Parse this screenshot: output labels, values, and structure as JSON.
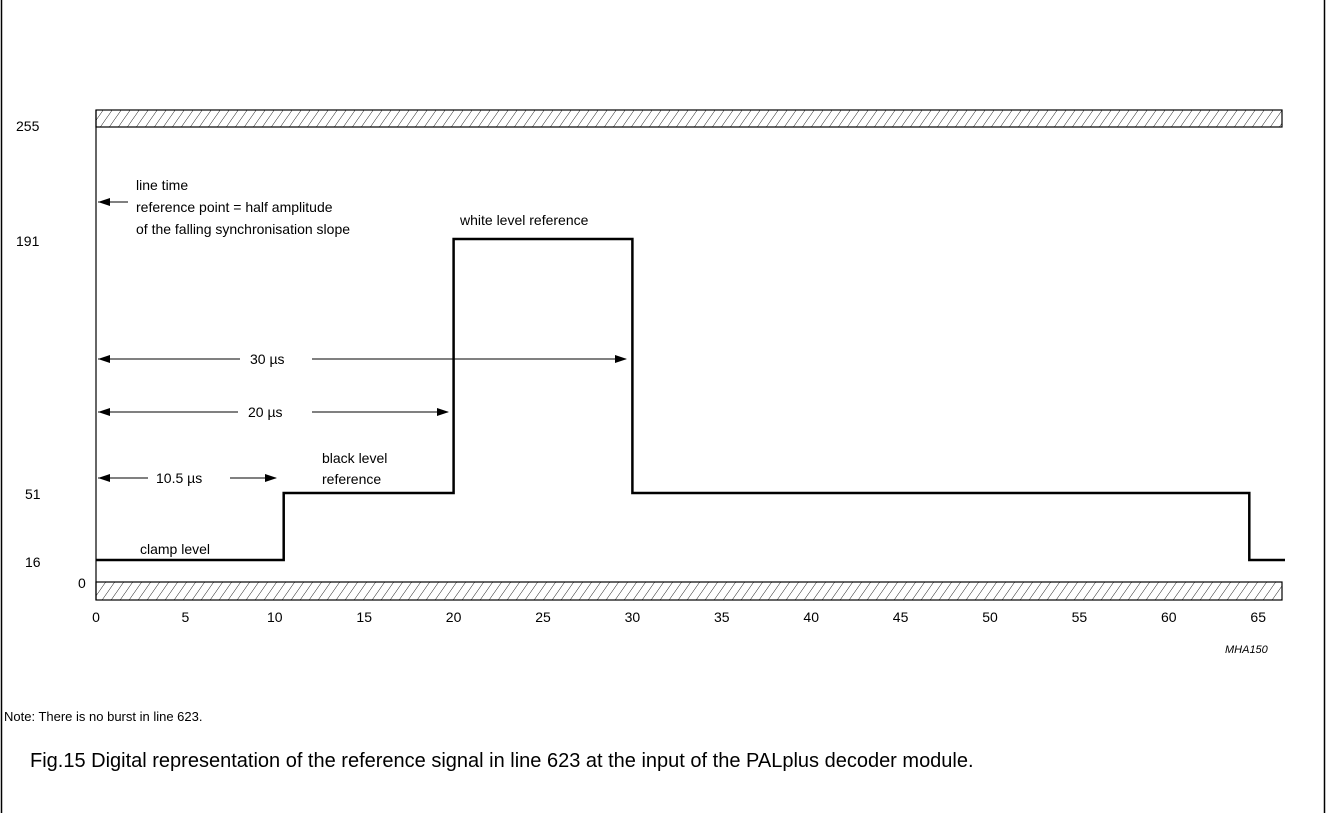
{
  "diagram": {
    "y_levels": [
      "255",
      "191",
      "51",
      "16",
      "0"
    ],
    "x_ticks": [
      "0",
      "5",
      "10",
      "15",
      "20",
      "25",
      "30",
      "35",
      "40",
      "45",
      "50",
      "55",
      "60",
      "65"
    ],
    "annotations": {
      "line_time_1": "line time",
      "line_time_2": "reference point = half amplitude",
      "line_time_3": "of the falling synchronisation slope",
      "white_level": "white level reference",
      "black_level_1": "black level",
      "black_level_2": "reference",
      "clamp_level": "clamp level"
    },
    "dimensions": {
      "d30": "30 µs",
      "d20": "20 µs",
      "d105": "10.5 µs"
    },
    "code": "MHA150",
    "signal": {
      "x_us": [
        0,
        10.5,
        10.5,
        20,
        20,
        30,
        30,
        64.5,
        64.5,
        66.5
      ],
      "level": [
        16,
        16,
        51,
        51,
        191,
        191,
        51,
        51,
        16,
        16
      ]
    }
  },
  "note": "Note: There is no burst in line 623.",
  "caption": "Fig.15  Digital representation of the reference signal in line 623 at the input of the PALplus decoder module."
}
